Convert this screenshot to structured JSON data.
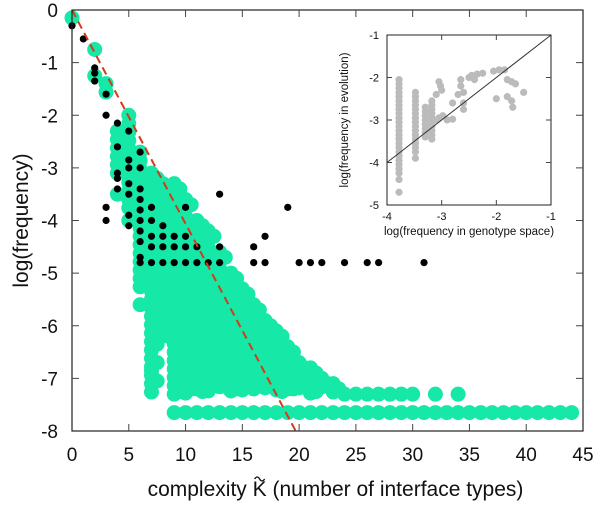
{
  "chart_data": [
    {
      "id": "main",
      "type": "scatter",
      "title": "",
      "xlabel": "complexity K̃ (number of interface types)",
      "xlabel_parts": {
        "before": "complexity ",
        "symbol": "K",
        "after": " (number of interface types)"
      },
      "ylabel": "log(frequency)",
      "xlim": [
        0,
        45
      ],
      "ylim": [
        -8,
        0
      ],
      "xticks": [
        0,
        5,
        10,
        15,
        20,
        25,
        30,
        35,
        40,
        45
      ],
      "yticks": [
        0,
        -1,
        -2,
        -3,
        -4,
        -5,
        -6,
        -7,
        -8
      ],
      "grid": false,
      "colors": {
        "green": "#16e8a8",
        "black": "#000000",
        "line": "#d43a1a"
      },
      "reference_line": {
        "name": "upper bound",
        "style": "dashed",
        "points": [
          [
            0,
            0
          ],
          [
            19.7,
            -8
          ]
        ]
      },
      "green_columns": [
        {
          "k": 0,
          "top": -0.15,
          "bottom": -0.15
        },
        {
          "k": 2,
          "top": -0.75,
          "bottom": -0.75
        },
        {
          "k": 2,
          "top": -1.25,
          "bottom": -1.25
        },
        {
          "k": 3,
          "top": -1.4,
          "bottom": -1.7
        },
        {
          "k": 4,
          "top": -2.3,
          "bottom": -3.2
        },
        {
          "k": 5,
          "top": -2.0,
          "bottom": -3.9
        },
        {
          "k": 6,
          "top": -2.7,
          "bottom": -5.3
        },
        {
          "k": 7,
          "top": -3.1,
          "bottom": -7.35
        },
        {
          "k": 8,
          "top": -3.3,
          "bottom": -6.2
        },
        {
          "k": 9,
          "top": -3.3,
          "bottom": -7.3
        },
        {
          "k": 10,
          "top": -3.6,
          "bottom": -7.3
        },
        {
          "k": 11,
          "top": -4.0,
          "bottom": -7.3
        },
        {
          "k": 12,
          "top": -4.2,
          "bottom": -7.3
        },
        {
          "k": 13,
          "top": -4.6,
          "bottom": -7.3
        },
        {
          "k": 14,
          "top": -5.0,
          "bottom": -7.3
        },
        {
          "k": 15,
          "top": -5.3,
          "bottom": -7.3
        },
        {
          "k": 16,
          "top": -5.6,
          "bottom": -7.3
        },
        {
          "k": 17,
          "top": -5.9,
          "bottom": -7.3
        },
        {
          "k": 18,
          "top": -6.1,
          "bottom": -7.3
        },
        {
          "k": 19,
          "top": -6.4,
          "bottom": -7.3
        },
        {
          "k": 20,
          "top": -6.7,
          "bottom": -7.3
        },
        {
          "k": 21,
          "top": -6.8,
          "bottom": -7.3
        },
        {
          "k": 22,
          "top": -7.0,
          "bottom": -7.3
        },
        {
          "k": 23,
          "top": -7.1,
          "bottom": -7.3
        },
        {
          "k": 24,
          "top": -7.3,
          "bottom": -7.3
        },
        {
          "k": 25,
          "top": -7.3,
          "bottom": -7.3
        },
        {
          "k": 26,
          "top": -7.3,
          "bottom": -7.3
        },
        {
          "k": 27,
          "top": -7.3,
          "bottom": -7.3
        },
        {
          "k": 28,
          "top": -7.3,
          "bottom": -7.3
        },
        {
          "k": 29,
          "top": -7.3,
          "bottom": -7.3
        },
        {
          "k": 30,
          "top": -7.3,
          "bottom": -7.3
        },
        {
          "k": 32,
          "top": -7.3,
          "bottom": -7.3
        },
        {
          "k": 34,
          "top": -7.3,
          "bottom": -7.3
        }
      ],
      "green_bottom_row": {
        "y": -7.65,
        "k_from": 9,
        "k_to": 44
      },
      "green_extra": [
        [
          7,
          -6.85
        ],
        [
          4,
          -3.5
        ],
        [
          5,
          -4.0
        ],
        [
          6,
          -5.6
        ]
      ],
      "black_points": [
        [
          0,
          -0.3
        ],
        [
          1,
          -0.55
        ],
        [
          2,
          -1.1
        ],
        [
          2,
          -1.2
        ],
        [
          2,
          -1.35
        ],
        [
          3,
          -1.6
        ],
        [
          3,
          -2.0
        ],
        [
          4,
          -2.15
        ],
        [
          4,
          -2.6
        ],
        [
          4,
          -3.1
        ],
        [
          4,
          -3.2
        ],
        [
          4,
          -3.4
        ],
        [
          3,
          -3.75
        ],
        [
          3,
          -4.0
        ],
        [
          5,
          -2.3
        ],
        [
          5,
          -2.85
        ],
        [
          5,
          -3.0
        ],
        [
          5,
          -3.3
        ],
        [
          5,
          -3.5
        ],
        [
          6,
          -2.7
        ],
        [
          6,
          -3.0
        ],
        [
          5,
          -3.9
        ],
        [
          5,
          -4.1
        ],
        [
          6,
          -3.4
        ],
        [
          6,
          -3.6
        ],
        [
          6,
          -3.8
        ],
        [
          6,
          -4.0
        ],
        [
          6,
          -4.2
        ],
        [
          6,
          -4.4
        ],
        [
          6,
          -4.7
        ],
        [
          6,
          -4.8
        ],
        [
          7,
          -3.75
        ],
        [
          7,
          -4.0
        ],
        [
          7,
          -4.3
        ],
        [
          7,
          -4.5
        ],
        [
          7,
          -4.8
        ],
        [
          8,
          -4.1
        ],
        [
          8,
          -4.3
        ],
        [
          8,
          -4.5
        ],
        [
          8,
          -4.8
        ],
        [
          9,
          -4.3
        ],
        [
          9,
          -4.5
        ],
        [
          9,
          -4.8
        ],
        [
          10,
          -4.3
        ],
        [
          10,
          -4.5
        ],
        [
          10,
          -4.8
        ],
        [
          11,
          -4.5
        ],
        [
          11,
          -4.8
        ],
        [
          12,
          -4.8
        ],
        [
          13,
          -4.8
        ],
        [
          10,
          -3.75
        ],
        [
          13,
          -4.5
        ],
        [
          13,
          -3.5
        ],
        [
          16,
          -4.5
        ],
        [
          17,
          -4.3
        ],
        [
          19,
          -3.75
        ],
        [
          16,
          -4.8
        ],
        [
          17,
          -4.8
        ],
        [
          20,
          -4.8
        ],
        [
          21,
          -4.8
        ],
        [
          22,
          -4.8
        ],
        [
          24,
          -4.8
        ],
        [
          26,
          -4.8
        ],
        [
          27,
          -4.8
        ],
        [
          31,
          -4.8
        ]
      ]
    },
    {
      "id": "inset",
      "type": "scatter",
      "xlabel": "log(frequency in genotype space)",
      "ylabel": "log(frequency in evolution)",
      "xlim": [
        -4,
        -1
      ],
      "ylim": [
        -5,
        -1
      ],
      "xticks": [
        -4,
        -3,
        -2,
        -1
      ],
      "yticks": [
        -1,
        -2,
        -3,
        -4,
        -5
      ],
      "grid": false,
      "colors": {
        "points": "#bbbbbb",
        "line": "#333333"
      },
      "reference_line": {
        "name": "y = x",
        "points": [
          [
            -4,
            -4
          ],
          [
            -1,
            -1
          ]
        ]
      },
      "columns": [
        {
          "x": -3.78,
          "top": -2.05,
          "bottom": -4.25
        },
        {
          "x": -3.48,
          "top": -2.35,
          "bottom": -3.75
        },
        {
          "x": -3.3,
          "top": -2.7,
          "bottom": -3.45
        },
        {
          "x": -3.18,
          "top": -2.55,
          "bottom": -3.45
        }
      ],
      "points": [
        [
          -3.78,
          -4.4
        ],
        [
          -3.78,
          -4.7
        ],
        [
          -3.48,
          -3.9
        ],
        [
          -3.05,
          -2.1
        ],
        [
          -3.02,
          -2.2
        ],
        [
          -3.0,
          -2.3
        ],
        [
          -3.1,
          -2.4
        ],
        [
          -3.05,
          -2.95
        ],
        [
          -2.98,
          -2.9
        ],
        [
          -2.9,
          -3.0
        ],
        [
          -2.8,
          -2.98
        ],
        [
          -3.1,
          -3.0
        ],
        [
          -2.8,
          -2.6
        ],
        [
          -2.7,
          -2.4
        ],
        [
          -2.65,
          -2.2
        ],
        [
          -2.65,
          -2.05
        ],
        [
          -2.6,
          -2.35
        ],
        [
          -2.6,
          -2.6
        ],
        [
          -2.6,
          -2.75
        ],
        [
          -2.5,
          -2.0
        ],
        [
          -2.45,
          -1.95
        ],
        [
          -2.4,
          -2.05
        ],
        [
          -2.35,
          -1.92
        ],
        [
          -2.25,
          -1.9
        ],
        [
          -2.05,
          -1.85
        ],
        [
          -1.95,
          -1.82
        ],
        [
          -1.85,
          -1.82
        ],
        [
          -1.8,
          -2.05
        ],
        [
          -1.72,
          -2.1
        ],
        [
          -1.65,
          -2.15
        ],
        [
          -1.5,
          -2.35
        ],
        [
          -2.0,
          -2.5
        ],
        [
          -1.8,
          -2.45
        ],
        [
          -1.72,
          -2.55
        ],
        [
          -1.7,
          -2.7
        ]
      ]
    }
  ]
}
